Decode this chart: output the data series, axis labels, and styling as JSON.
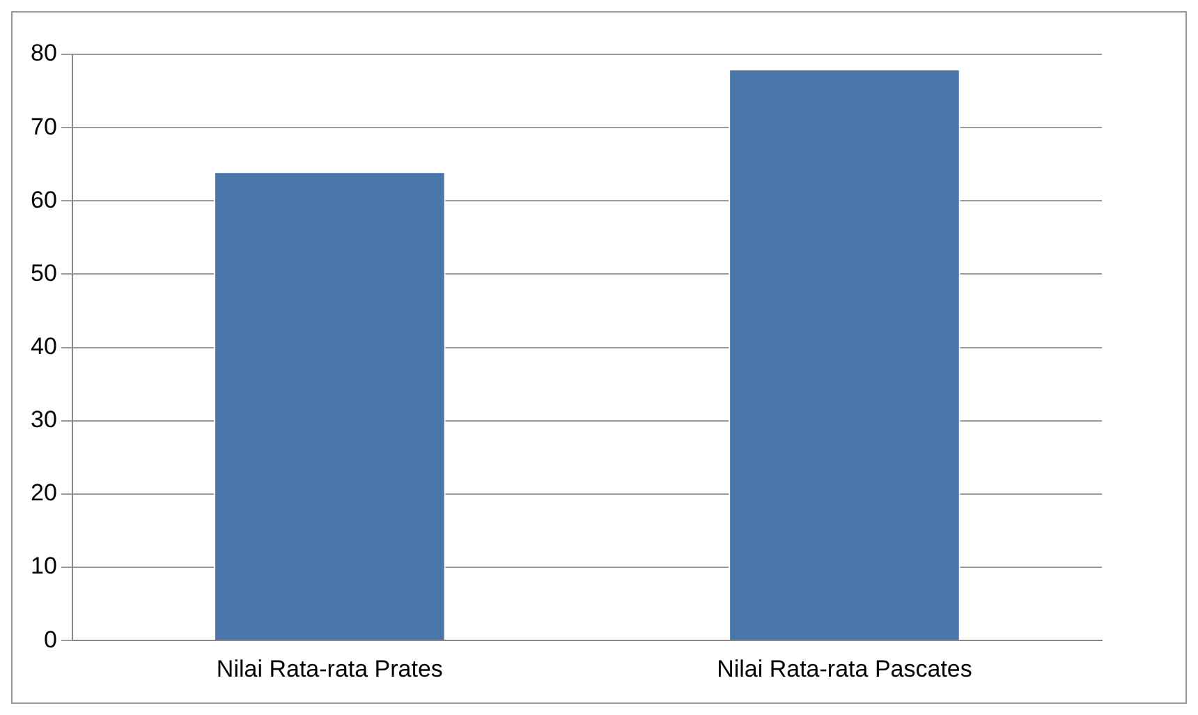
{
  "chart_data": {
    "type": "bar",
    "categories": [
      "Nilai Rata-rata Prates",
      "Nilai Rata-rata Pascates"
    ],
    "values": [
      64,
      78
    ],
    "color": "#4a76ab",
    "ylim": [
      0,
      80
    ],
    "yticks": [
      0,
      10,
      20,
      30,
      40,
      50,
      60,
      70,
      80
    ],
    "grid": "y",
    "legend": false
  }
}
